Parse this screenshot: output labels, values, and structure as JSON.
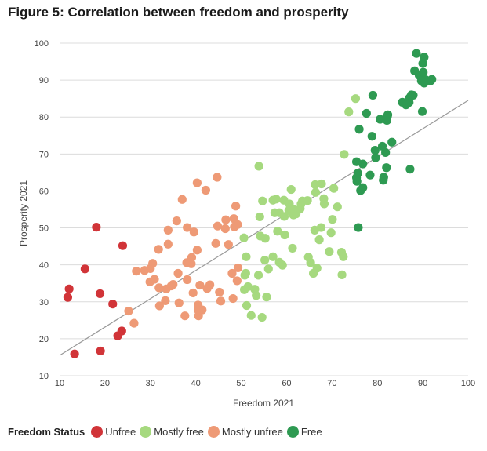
{
  "figure_title": "Figure 5: Correlation between freedom and prosperity",
  "legend": {
    "title": "Freedom Status",
    "items": [
      {
        "label": "Unfree",
        "color": "#d13438"
      },
      {
        "label": "Mostly free",
        "color": "#a6d97f"
      },
      {
        "label": "Mostly unfree",
        "color": "#ee9a76"
      },
      {
        "label": "Free",
        "color": "#2e9a52"
      }
    ]
  },
  "chart_data": {
    "type": "scatter",
    "title": "Figure 5: Correlation between freedom and prosperity",
    "xlabel": "Freedom 2021",
    "ylabel": "Prosperity 2021",
    "xlim": [
      10,
      100
    ],
    "ylim": [
      10,
      100
    ],
    "xticks": [
      10,
      20,
      30,
      40,
      50,
      60,
      70,
      80,
      90,
      100
    ],
    "yticks": [
      10,
      20,
      30,
      40,
      50,
      60,
      70,
      80,
      90,
      100
    ],
    "grid": "horizontal",
    "trendline": {
      "x": [
        10,
        100
      ],
      "y": [
        15.5,
        84.5
      ],
      "color": "#999999"
    },
    "series": [
      {
        "name": "Unfree",
        "color": "#d13438",
        "points": [
          [
            11.8,
            31.2
          ],
          [
            12.1,
            33.5
          ],
          [
            13.3,
            15.9
          ],
          [
            15.6,
            38.9
          ],
          [
            18.1,
            50.2
          ],
          [
            18.9,
            32.2
          ],
          [
            19.0,
            16.7
          ],
          [
            21.7,
            29.4
          ],
          [
            22.8,
            20.8
          ],
          [
            23.7,
            22.1
          ],
          [
            23.9,
            45.2
          ]
        ]
      },
      {
        "name": "Mostly unfree",
        "color": "#ee9a76",
        "points": [
          [
            25.2,
            27.5
          ],
          [
            26.4,
            24.2
          ],
          [
            26.9,
            38.3
          ],
          [
            28.7,
            38.5
          ],
          [
            29.9,
            35.4
          ],
          [
            30.0,
            39.0
          ],
          [
            30.5,
            40.4
          ],
          [
            30.9,
            36.1
          ],
          [
            31.8,
            44.2
          ],
          [
            31.9,
            33.8
          ],
          [
            32.0,
            28.9
          ],
          [
            33.3,
            30.3
          ],
          [
            33.5,
            33.5
          ],
          [
            33.9,
            45.6
          ],
          [
            33.9,
            49.4
          ],
          [
            34.6,
            34.3
          ],
          [
            35.0,
            34.7
          ],
          [
            35.8,
            51.9
          ],
          [
            36.1,
            37.7
          ],
          [
            36.3,
            29.7
          ],
          [
            37.0,
            57.7
          ],
          [
            37.6,
            26.2
          ],
          [
            38.0,
            40.6
          ],
          [
            38.1,
            50.1
          ],
          [
            38.1,
            36.0
          ],
          [
            39.0,
            40.3
          ],
          [
            39.1,
            42.0
          ],
          [
            39.4,
            32.4
          ],
          [
            39.6,
            48.9
          ],
          [
            40.3,
            62.2
          ],
          [
            40.3,
            44.0
          ],
          [
            40.5,
            27.8
          ],
          [
            40.5,
            29.1
          ],
          [
            40.6,
            26.2
          ],
          [
            40.9,
            34.5
          ],
          [
            41.0,
            27.8
          ],
          [
            41.4,
            27.8
          ],
          [
            42.2,
            60.2
          ],
          [
            42.5,
            33.6
          ],
          [
            43.1,
            34.6
          ],
          [
            44.4,
            45.8
          ],
          [
            44.7,
            63.7
          ],
          [
            44.8,
            50.5
          ],
          [
            45.2,
            32.6
          ],
          [
            45.5,
            30.2
          ],
          [
            46.5,
            49.8
          ],
          [
            46.6,
            52.2
          ],
          [
            47.2,
            45.5
          ],
          [
            48.0,
            37.7
          ],
          [
            48.2,
            30.9
          ],
          [
            48.4,
            52.5
          ],
          [
            48.5,
            50.3
          ],
          [
            48.8,
            55.9
          ],
          [
            49.1,
            35.7
          ],
          [
            49.2,
            50.9
          ],
          [
            49.3,
            39.2
          ]
        ]
      },
      {
        "name": "Mostly free",
        "color": "#a6d97f",
        "points": [
          [
            50.6,
            47.3
          ],
          [
            50.7,
            33.3
          ],
          [
            50.8,
            37.2
          ],
          [
            51.0,
            37.7
          ],
          [
            51.1,
            42.2
          ],
          [
            51.2,
            29.0
          ],
          [
            51.5,
            34.1
          ],
          [
            52.2,
            26.3
          ],
          [
            53.0,
            33.4
          ],
          [
            53.3,
            31.7
          ],
          [
            53.8,
            37.2
          ],
          [
            53.9,
            66.7
          ],
          [
            54.1,
            53.0
          ],
          [
            54.2,
            47.8
          ],
          [
            54.6,
            25.8
          ],
          [
            54.7,
            57.3
          ],
          [
            55.2,
            41.3
          ],
          [
            55.3,
            47.2
          ],
          [
            55.6,
            31.3
          ],
          [
            56.0,
            38.9
          ],
          [
            57.0,
            57.5
          ],
          [
            57.0,
            42.2
          ],
          [
            57.4,
            54.1
          ],
          [
            57.7,
            57.8
          ],
          [
            58.0,
            49.1
          ],
          [
            58.4,
            40.7
          ],
          [
            58.4,
            54.1
          ],
          [
            59.1,
            39.9
          ],
          [
            59.4,
            57.5
          ],
          [
            59.5,
            53.1
          ],
          [
            59.6,
            48.1
          ],
          [
            60.5,
            54.7
          ],
          [
            60.6,
            56.5
          ],
          [
            61.0,
            60.4
          ],
          [
            61.3,
            44.5
          ],
          [
            61.5,
            53.5
          ],
          [
            61.7,
            54.9
          ],
          [
            62.1,
            53.8
          ],
          [
            63.0,
            55.2
          ],
          [
            63.2,
            56.5
          ],
          [
            63.5,
            57.3
          ],
          [
            64.6,
            57.4
          ],
          [
            64.8,
            42.1
          ],
          [
            65.3,
            40.6
          ],
          [
            65.9,
            37.7
          ],
          [
            66.2,
            49.4
          ],
          [
            66.3,
            61.7
          ],
          [
            66.4,
            59.6
          ],
          [
            66.7,
            39.1
          ],
          [
            67.2,
            46.8
          ],
          [
            67.6,
            50.1
          ],
          [
            67.7,
            61.9
          ],
          [
            68.2,
            57.9
          ],
          [
            68.3,
            56.5
          ],
          [
            69.4,
            43.6
          ],
          [
            69.8,
            48.7
          ],
          [
            70.1,
            52.3
          ],
          [
            70.4,
            60.7
          ],
          [
            71.2,
            55.7
          ],
          [
            72.1,
            43.4
          ],
          [
            72.2,
            37.3
          ],
          [
            72.5,
            42.2
          ],
          [
            72.7,
            69.9
          ],
          [
            73.7,
            81.4
          ],
          [
            75.2,
            85.0
          ]
        ]
      },
      {
        "name": "Free",
        "color": "#2e9a52",
        "points": [
          [
            75.4,
            67.9
          ],
          [
            75.4,
            63.6
          ],
          [
            75.5,
            62.6
          ],
          [
            75.7,
            64.8
          ],
          [
            75.8,
            50.1
          ],
          [
            76.0,
            76.7
          ],
          [
            76.3,
            60.1
          ],
          [
            76.8,
            67.3
          ],
          [
            76.8,
            60.9
          ],
          [
            77.6,
            81.0
          ],
          [
            78.4,
            64.3
          ],
          [
            78.8,
            74.8
          ],
          [
            79.0,
            85.9
          ],
          [
            79.5,
            71.0
          ],
          [
            79.6,
            69.0
          ],
          [
            80.6,
            79.4
          ],
          [
            81.1,
            72.1
          ],
          [
            81.3,
            62.9
          ],
          [
            81.4,
            63.7
          ],
          [
            81.8,
            70.4
          ],
          [
            82.0,
            66.3
          ],
          [
            82.1,
            79.1
          ],
          [
            82.2,
            80.1
          ],
          [
            82.3,
            80.6
          ],
          [
            83.2,
            73.2
          ],
          [
            85.5,
            84.0
          ],
          [
            86.3,
            83.3
          ],
          [
            86.6,
            83.6
          ],
          [
            87.0,
            84.0
          ],
          [
            87.1,
            85.2
          ],
          [
            87.2,
            65.9
          ],
          [
            87.5,
            86.0
          ],
          [
            87.9,
            85.9
          ],
          [
            88.2,
            92.5
          ],
          [
            88.6,
            97.2
          ],
          [
            89.2,
            91.3
          ],
          [
            89.7,
            89.8
          ],
          [
            89.9,
            81.5
          ],
          [
            90.0,
            94.5
          ],
          [
            90.1,
            92.1
          ],
          [
            90.3,
            89.2
          ],
          [
            90.3,
            96.2
          ],
          [
            90.6,
            90.1
          ],
          [
            91.7,
            89.8
          ],
          [
            92.0,
            90.2
          ]
        ]
      }
    ]
  }
}
